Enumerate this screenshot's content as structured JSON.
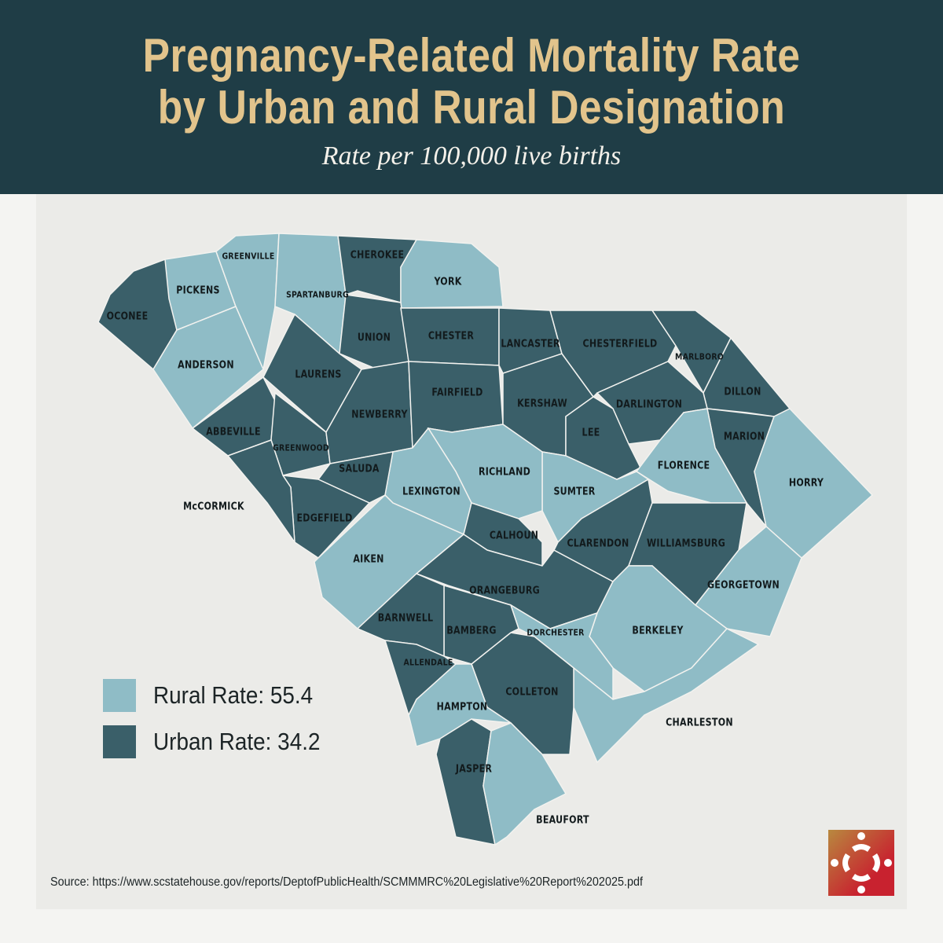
{
  "header": {
    "title_line1": "Pregnancy-Related Mortality Rate",
    "title_line2": "by Urban and Rural Designation",
    "subtitle": "Rate per 100,000 live births"
  },
  "colors": {
    "header_bg": "#1f3d46",
    "title": "#e2c48c",
    "rural": "#8fbcc6",
    "urban": "#3a5f69"
  },
  "legend": {
    "rural": "Rural Rate: 55.4",
    "urban": "Urban Rate: 34.2"
  },
  "rates": {
    "rural": 55.4,
    "urban": 34.2
  },
  "counties": [
    {
      "name": "OCONEE",
      "type": "urban"
    },
    {
      "name": "PICKENS",
      "type": "rural"
    },
    {
      "name": "GREENVILLE",
      "type": "rural"
    },
    {
      "name": "ANDERSON",
      "type": "rural"
    },
    {
      "name": "SPARTANBURG",
      "type": "rural"
    },
    {
      "name": "CHEROKEE",
      "type": "urban"
    },
    {
      "name": "YORK",
      "type": "rural"
    },
    {
      "name": "UNION",
      "type": "urban"
    },
    {
      "name": "CHESTER",
      "type": "urban"
    },
    {
      "name": "LAURENS",
      "type": "urban"
    },
    {
      "name": "ABBEVILLE",
      "type": "urban"
    },
    {
      "name": "GREENWOOD",
      "type": "urban"
    },
    {
      "name": "NEWBERRY",
      "type": "urban"
    },
    {
      "name": "FAIRFIELD",
      "type": "urban"
    },
    {
      "name": "LANCASTER",
      "type": "urban"
    },
    {
      "name": "KERSHAW",
      "type": "urban"
    },
    {
      "name": "CHESTERFIELD",
      "type": "urban"
    },
    {
      "name": "MARLBORO",
      "type": "urban"
    },
    {
      "name": "DILLON",
      "type": "urban"
    },
    {
      "name": "DARLINGTON",
      "type": "urban"
    },
    {
      "name": "LEE",
      "type": "urban"
    },
    {
      "name": "MARION",
      "type": "urban"
    },
    {
      "name": "HORRY",
      "type": "rural"
    },
    {
      "name": "FLORENCE",
      "type": "rural"
    },
    {
      "name": "SUMTER",
      "type": "rural"
    },
    {
      "name": "RICHLAND",
      "type": "rural"
    },
    {
      "name": "LEXINGTON",
      "type": "rural"
    },
    {
      "name": "SALUDA",
      "type": "urban"
    },
    {
      "name": "EDGEFIELD",
      "type": "urban"
    },
    {
      "name": "McCORMICK",
      "type": "urban"
    },
    {
      "name": "AIKEN",
      "type": "rural"
    },
    {
      "name": "CALHOUN",
      "type": "urban"
    },
    {
      "name": "ORANGEBURG",
      "type": "urban"
    },
    {
      "name": "CLARENDON",
      "type": "urban"
    },
    {
      "name": "WILLIAMSBURG",
      "type": "urban"
    },
    {
      "name": "GEORGETOWN",
      "type": "rural"
    },
    {
      "name": "BERKELEY",
      "type": "rural"
    },
    {
      "name": "DORCHESTER",
      "type": "rural"
    },
    {
      "name": "CHARLESTON",
      "type": "rural"
    },
    {
      "name": "COLLETON",
      "type": "urban"
    },
    {
      "name": "BAMBERG",
      "type": "urban"
    },
    {
      "name": "BARNWELL",
      "type": "urban"
    },
    {
      "name": "ALLENDALE",
      "type": "urban"
    },
    {
      "name": "HAMPTON",
      "type": "rural"
    },
    {
      "name": "JASPER",
      "type": "urban"
    },
    {
      "name": "BEAUFORT",
      "type": "rural"
    }
  ],
  "source": "Source: https://www.scstatehouse.gov/reports/DeptofPublicHealth/SCMMMRC%20Legislative%20Report%202025.pdf",
  "logo": {
    "icon": "organization-logo"
  }
}
